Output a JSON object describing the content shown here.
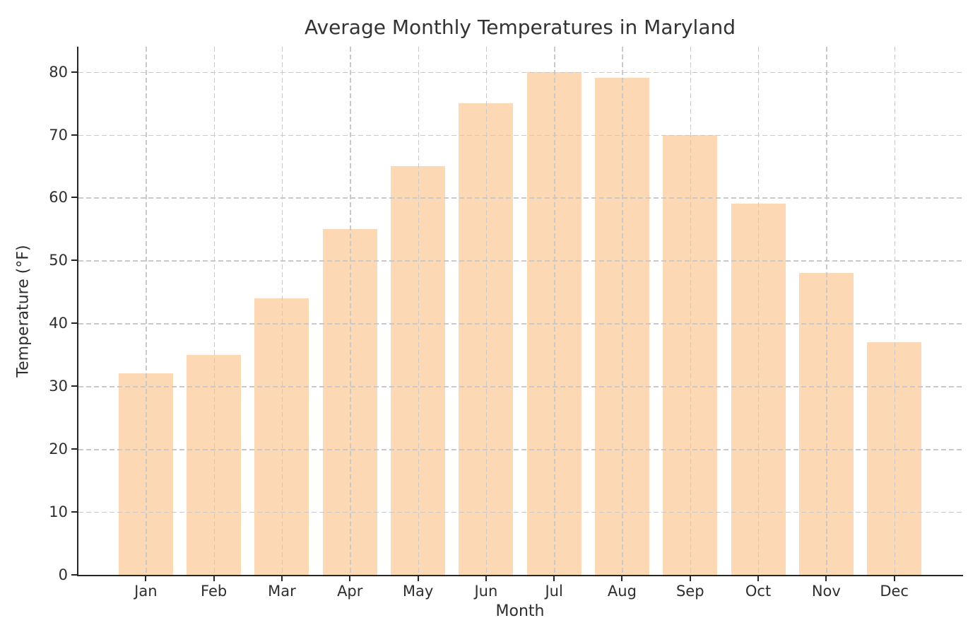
{
  "chart_data": {
    "type": "bar",
    "title": "Average Monthly Temperatures in Maryland",
    "xlabel": "Month",
    "ylabel": "Temperature (°F)",
    "categories": [
      "Jan",
      "Feb",
      "Mar",
      "Apr",
      "May",
      "Jun",
      "Jul",
      "Aug",
      "Sep",
      "Oct",
      "Nov",
      "Dec"
    ],
    "values": [
      32,
      35,
      44,
      55,
      65,
      75,
      80,
      79,
      70,
      59,
      48,
      37
    ],
    "yticks": [
      0,
      10,
      20,
      30,
      40,
      50,
      60,
      70,
      80
    ],
    "ylim": [
      0,
      84
    ],
    "grid": "dashed, both axes, drawn above bars",
    "legend_position": "none",
    "colors": {
      "bar_fill": "#fcd8b4",
      "grid_line": "#c9c9c9",
      "axis_spine": "#262626",
      "text": "#2e2e2e",
      "title_text": "#333333",
      "background": "#ffffff"
    }
  }
}
